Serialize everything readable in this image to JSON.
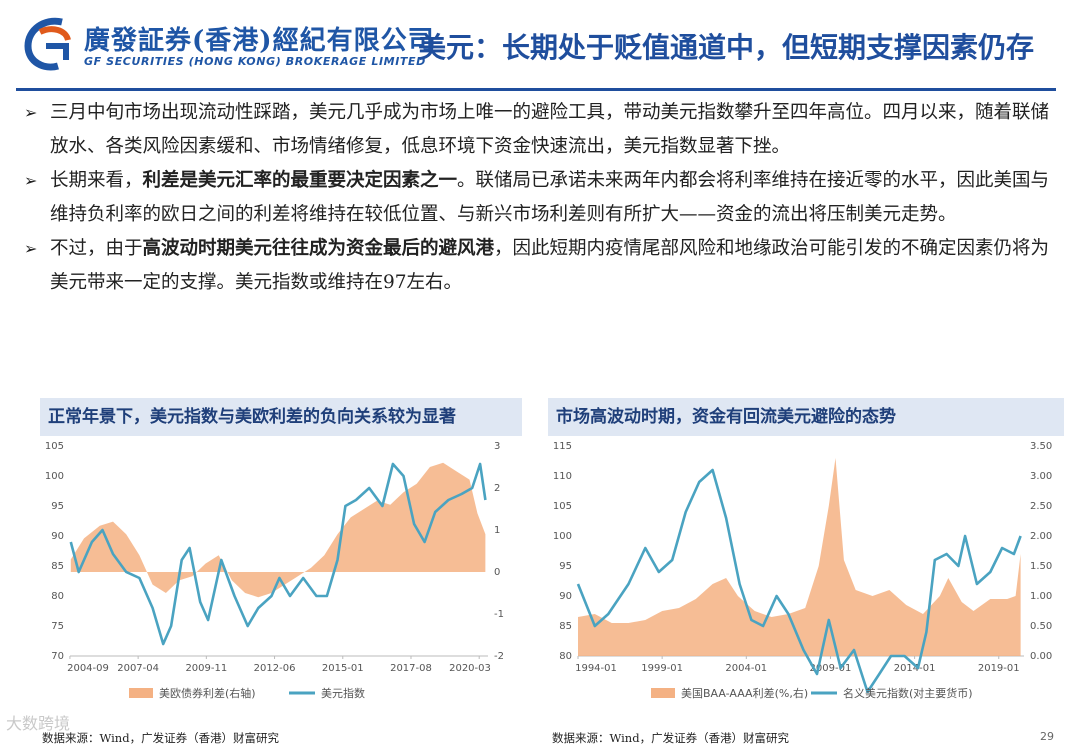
{
  "header": {
    "logo_cn": "廣發証券(香港)經紀有限公司",
    "logo_en": "GF SECURITIES (HONG KONG) BROKERAGE LIMITED",
    "title": "美元：长期处于贬值通道中，但短期支撑因素仍存"
  },
  "bullets": [
    {
      "segments": [
        {
          "text": "三月中旬市场出现流动性踩踏，美元几乎成为市场上唯一的避险工具，带动美元指数攀升至四年高位。四月以来，随着联储放水、各类风险因素缓和、市场情绪修复，低息环境下资金快速流出，美元指数显著下挫。",
          "bold": false
        }
      ]
    },
    {
      "segments": [
        {
          "text": "长期来看，",
          "bold": false
        },
        {
          "text": "利差是美元汇率的最重要决定因素之一",
          "bold": true
        },
        {
          "text": "。联储局已承诺未来两年内都会将利率维持在接近零的水平，因此美国与维持负利率的欧日之间的利差将维持在较低位置、与新兴市场利差则有所扩大——资金的流出将压制美元走势。",
          "bold": false
        }
      ]
    },
    {
      "segments": [
        {
          "text": "不过，由于",
          "bold": false
        },
        {
          "text": "高波动时期美元往往成为资金最后的避风港",
          "bold": true
        },
        {
          "text": "，因此短期内疫情尾部风险和地缘政治可能引发的不确定因素仍将为美元带来一定的支撑。美元指数或维持在97左右。",
          "bold": false
        }
      ]
    }
  ],
  "source_left": "数据来源：Wind，广发证券（香港）财富研究",
  "source_right": "数据来源：Wind，广发证券（香港）财富研究",
  "page_number": "29",
  "watermark": "大数跨境",
  "colors": {
    "area": "#f4b183",
    "line": "#4aa3c1",
    "title_blue": "#1f4e9d",
    "panel_bg": "#dfe7f3"
  },
  "chart_data": [
    {
      "type": "line",
      "title": "正常年景下，美元指数与美欧利差的负向关系较为显著",
      "x_ticks": [
        "2004-09",
        "2007-04",
        "2009-11",
        "2012-06",
        "2015-01",
        "2017-08",
        "2020-03"
      ],
      "x_range": [
        2004.67,
        2020.5
      ],
      "y_left": {
        "ticks": [
          70,
          75,
          80,
          85,
          90,
          95,
          100,
          105
        ],
        "lim": [
          70,
          105
        ]
      },
      "y_right": {
        "ticks": [
          -2,
          -1,
          0,
          1,
          2,
          3
        ],
        "lim": [
          -2,
          3
        ]
      },
      "series": [
        {
          "name": "美欧债券利差(右轴)",
          "kind": "area",
          "axis": "right",
          "x": [
            2004.7,
            2005.2,
            2005.8,
            2006.3,
            2006.8,
            2007.3,
            2007.8,
            2008.3,
            2008.8,
            2009.3,
            2009.8,
            2010.3,
            2010.8,
            2011.3,
            2011.8,
            2012.3,
            2012.8,
            2013.3,
            2013.8,
            2014.3,
            2014.8,
            2015.3,
            2015.8,
            2016.3,
            2016.8,
            2017.3,
            2017.8,
            2018.3,
            2018.8,
            2019.3,
            2019.8,
            2020.1,
            2020.4
          ],
          "y": [
            0.3,
            0.8,
            1.1,
            1.2,
            0.9,
            0.4,
            -0.3,
            -0.5,
            -0.2,
            -0.1,
            0.2,
            0.4,
            -0.2,
            -0.5,
            -0.6,
            -0.5,
            -0.3,
            -0.1,
            0.1,
            0.4,
            0.9,
            1.3,
            1.5,
            1.7,
            1.6,
            1.9,
            2.1,
            2.5,
            2.6,
            2.4,
            2.2,
            1.4,
            0.9
          ]
        },
        {
          "name": "美元指数",
          "kind": "line",
          "axis": "left",
          "x": [
            2004.7,
            2005.0,
            2005.5,
            2005.9,
            2006.3,
            2006.8,
            2007.3,
            2007.8,
            2008.2,
            2008.5,
            2008.9,
            2009.2,
            2009.6,
            2009.9,
            2010.4,
            2010.9,
            2011.4,
            2011.8,
            2012.3,
            2012.6,
            2013.0,
            2013.5,
            2014.0,
            2014.4,
            2014.8,
            2015.1,
            2015.5,
            2016.0,
            2016.5,
            2016.9,
            2017.3,
            2017.7,
            2018.1,
            2018.5,
            2019.0,
            2019.5,
            2019.9,
            2020.2,
            2020.4
          ],
          "y": [
            89,
            84,
            89,
            91,
            87,
            84,
            83,
            78,
            72,
            75,
            86,
            88,
            79,
            76,
            86,
            80,
            75,
            78,
            80,
            83,
            80,
            83,
            80,
            80,
            86,
            95,
            96,
            98,
            95,
            102,
            100,
            92,
            89,
            94,
            96,
            97,
            98,
            102,
            96
          ]
        }
      ]
    },
    {
      "type": "line",
      "title": "市场高波动时期，资金有回流美元避险的态势",
      "x_ticks": [
        "1994-01",
        "1999-01",
        "2004-01",
        "2009-01",
        "2014-01",
        "2019-01"
      ],
      "x_range": [
        1994.0,
        2020.5
      ],
      "y_left": {
        "ticks": [
          80,
          85,
          90,
          95,
          100,
          105,
          110,
          115
        ],
        "lim": [
          80,
          115
        ]
      },
      "y_right": {
        "ticks": [
          "0.00",
          "0.50",
          "1.00",
          "1.50",
          "2.00",
          "2.50",
          "3.00",
          "3.50"
        ],
        "lim": [
          0,
          3.5
        ]
      },
      "series": [
        {
          "name": "美国BAA-AAA利差(%,右)",
          "kind": "area",
          "axis": "right",
          "x": [
            1994.0,
            1995.0,
            1996.0,
            1997.0,
            1998.0,
            1999.0,
            2000.0,
            2001.0,
            2002.0,
            2002.8,
            2003.5,
            2004.5,
            2005.5,
            2006.5,
            2007.5,
            2008.3,
            2008.9,
            2009.3,
            2009.8,
            2010.5,
            2011.5,
            2012.5,
            2013.5,
            2014.5,
            2015.5,
            2016.0,
            2016.8,
            2017.5,
            2018.5,
            2019.5,
            2020.0,
            2020.3
          ],
          "y": [
            0.65,
            0.7,
            0.55,
            0.55,
            0.6,
            0.75,
            0.8,
            0.95,
            1.2,
            1.3,
            1.0,
            0.75,
            0.65,
            0.7,
            0.8,
            1.5,
            2.5,
            3.3,
            1.6,
            1.1,
            1.0,
            1.1,
            0.85,
            0.7,
            1.0,
            1.3,
            0.9,
            0.75,
            0.95,
            0.95,
            1.0,
            1.7
          ]
        },
        {
          "name": "名义美元指数(对主要货币)",
          "kind": "line",
          "axis": "left",
          "x": [
            1994.0,
            1995.0,
            1995.8,
            1997.0,
            1998.0,
            1998.8,
            1999.6,
            2000.4,
            2001.2,
            2002.0,
            2002.8,
            2003.6,
            2004.3,
            2005.0,
            2005.8,
            2006.5,
            2007.4,
            2008.2,
            2008.9,
            2009.6,
            2010.4,
            2011.2,
            2011.9,
            2012.6,
            2013.4,
            2014.2,
            2014.7,
            2015.2,
            2015.9,
            2016.6,
            2017.0,
            2017.7,
            2018.5,
            2019.2,
            2019.9,
            2020.3
          ],
          "y": [
            92,
            85,
            87,
            92,
            98,
            94,
            96,
            104,
            109,
            111,
            103,
            92,
            86,
            85,
            90,
            87,
            81,
            77,
            86,
            78,
            81,
            74,
            77,
            80,
            80,
            78,
            84,
            96,
            97,
            95,
            100,
            92,
            94,
            98,
            97,
            100
          ]
        }
      ]
    }
  ]
}
